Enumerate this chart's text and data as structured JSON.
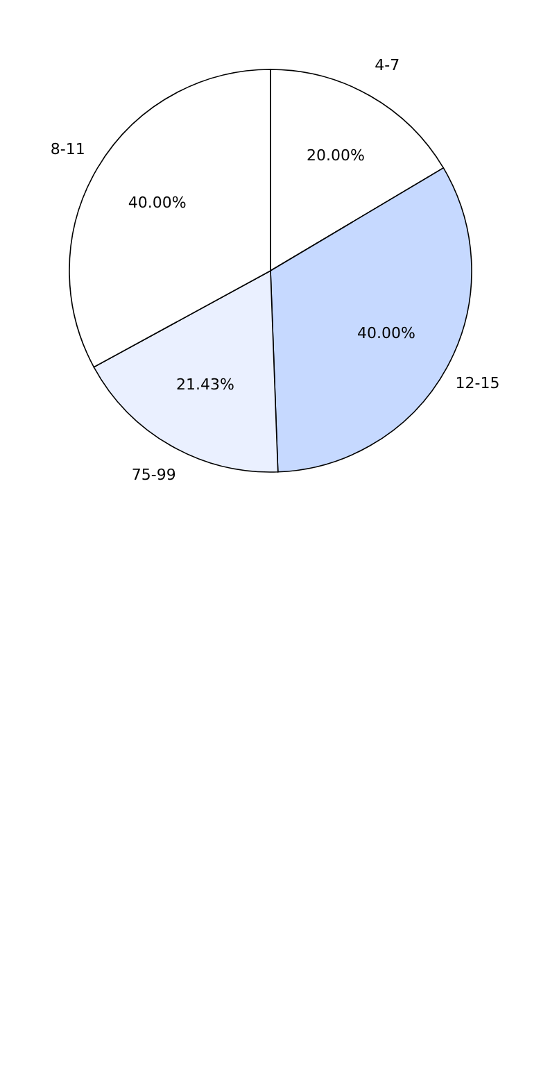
{
  "chart_data": {
    "type": "pie",
    "categories": [
      "4-7",
      "12-15",
      "75-99",
      "8-11"
    ],
    "values": [
      20,
      40,
      21.43,
      40
    ],
    "colors": [
      "#ffffff",
      "#c6d9ff",
      "#eaf0ff",
      "#ffffff"
    ],
    "value_labels": [
      "20.00%",
      "40.00%",
      "21.43%",
      "40.00%"
    ],
    "legend": false
  }
}
